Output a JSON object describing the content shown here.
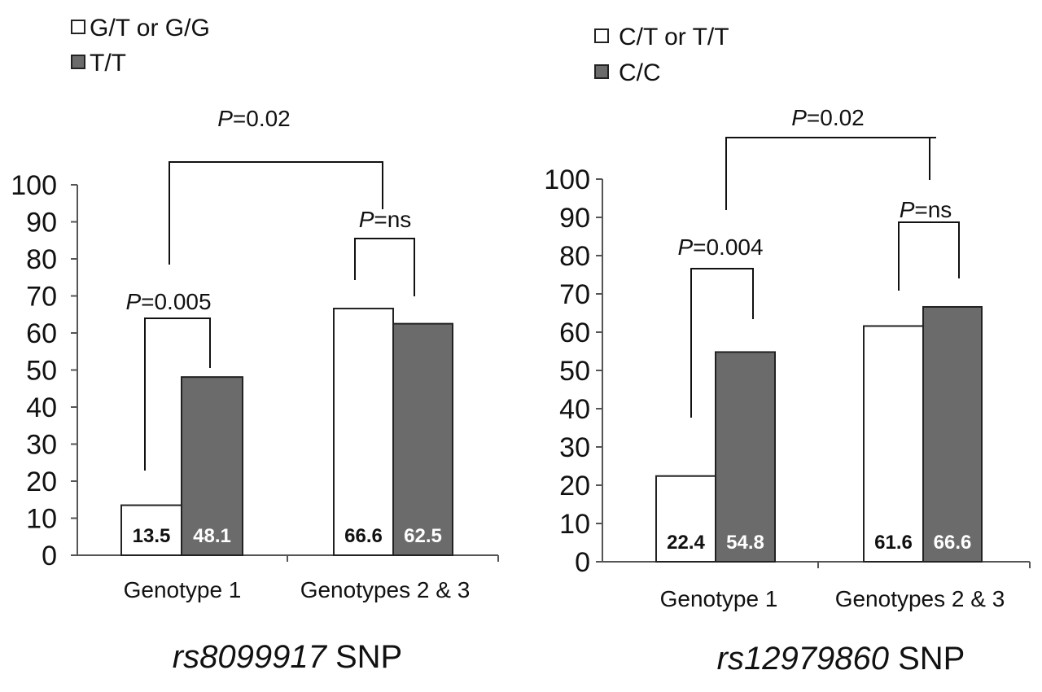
{
  "chart_data": [
    {
      "type": "bar",
      "snp": "rs8099917",
      "xlabel_italic": "rs8099917",
      "xlabel_suffix": " SNP",
      "categories": [
        "Genotype 1",
        "Genotypes 2 & 3"
      ],
      "series": [
        {
          "name": "G/T or G/G",
          "values": [
            13.5,
            66.6
          ],
          "color": "#ffffff",
          "label_color": "#111111"
        },
        {
          "name": "T/T",
          "values": [
            48.1,
            62.5
          ],
          "color": "#6b6b6b",
          "label_color": "#ffffff"
        }
      ],
      "value_labels": [
        [
          "13.5",
          "66.6"
        ],
        [
          "48.1",
          "62.5"
        ]
      ],
      "ylim": [
        0,
        100
      ],
      "yticks": [
        0,
        10,
        20,
        30,
        40,
        50,
        60,
        70,
        80,
        90,
        100
      ],
      "legend_position": "top-left",
      "pvalues": {
        "genotype1": {
          "p": "P",
          "rest": "=0.005"
        },
        "genotypes23": {
          "p": "P",
          "rest": "=ns"
        },
        "overall": {
          "p": "P",
          "rest": "=0.02"
        }
      }
    },
    {
      "type": "bar",
      "snp": "rs12979860",
      "xlabel_italic": "rs12979860",
      "xlabel_suffix": " SNP",
      "categories": [
        "Genotype 1",
        "Genotypes 2 & 3"
      ],
      "series": [
        {
          "name": "C/T or T/T",
          "values": [
            22.4,
            61.6
          ],
          "color": "#ffffff",
          "label_color": "#111111"
        },
        {
          "name": "C/C",
          "values": [
            54.8,
            66.6
          ],
          "color": "#6b6b6b",
          "label_color": "#ffffff"
        }
      ],
      "value_labels": [
        [
          "22.4",
          "61.6"
        ],
        [
          "54.8",
          "66.6"
        ]
      ],
      "ylim": [
        0,
        100
      ],
      "yticks": [
        0,
        10,
        20,
        30,
        40,
        50,
        60,
        70,
        80,
        90,
        100
      ],
      "legend_position": "top-left",
      "pvalues": {
        "genotype1": {
          "p": "P",
          "rest": "=0.004"
        },
        "genotypes23": {
          "p": "P",
          "rest": "=ns"
        },
        "overall": {
          "p": "P",
          "rest": "=0.02"
        }
      }
    }
  ]
}
